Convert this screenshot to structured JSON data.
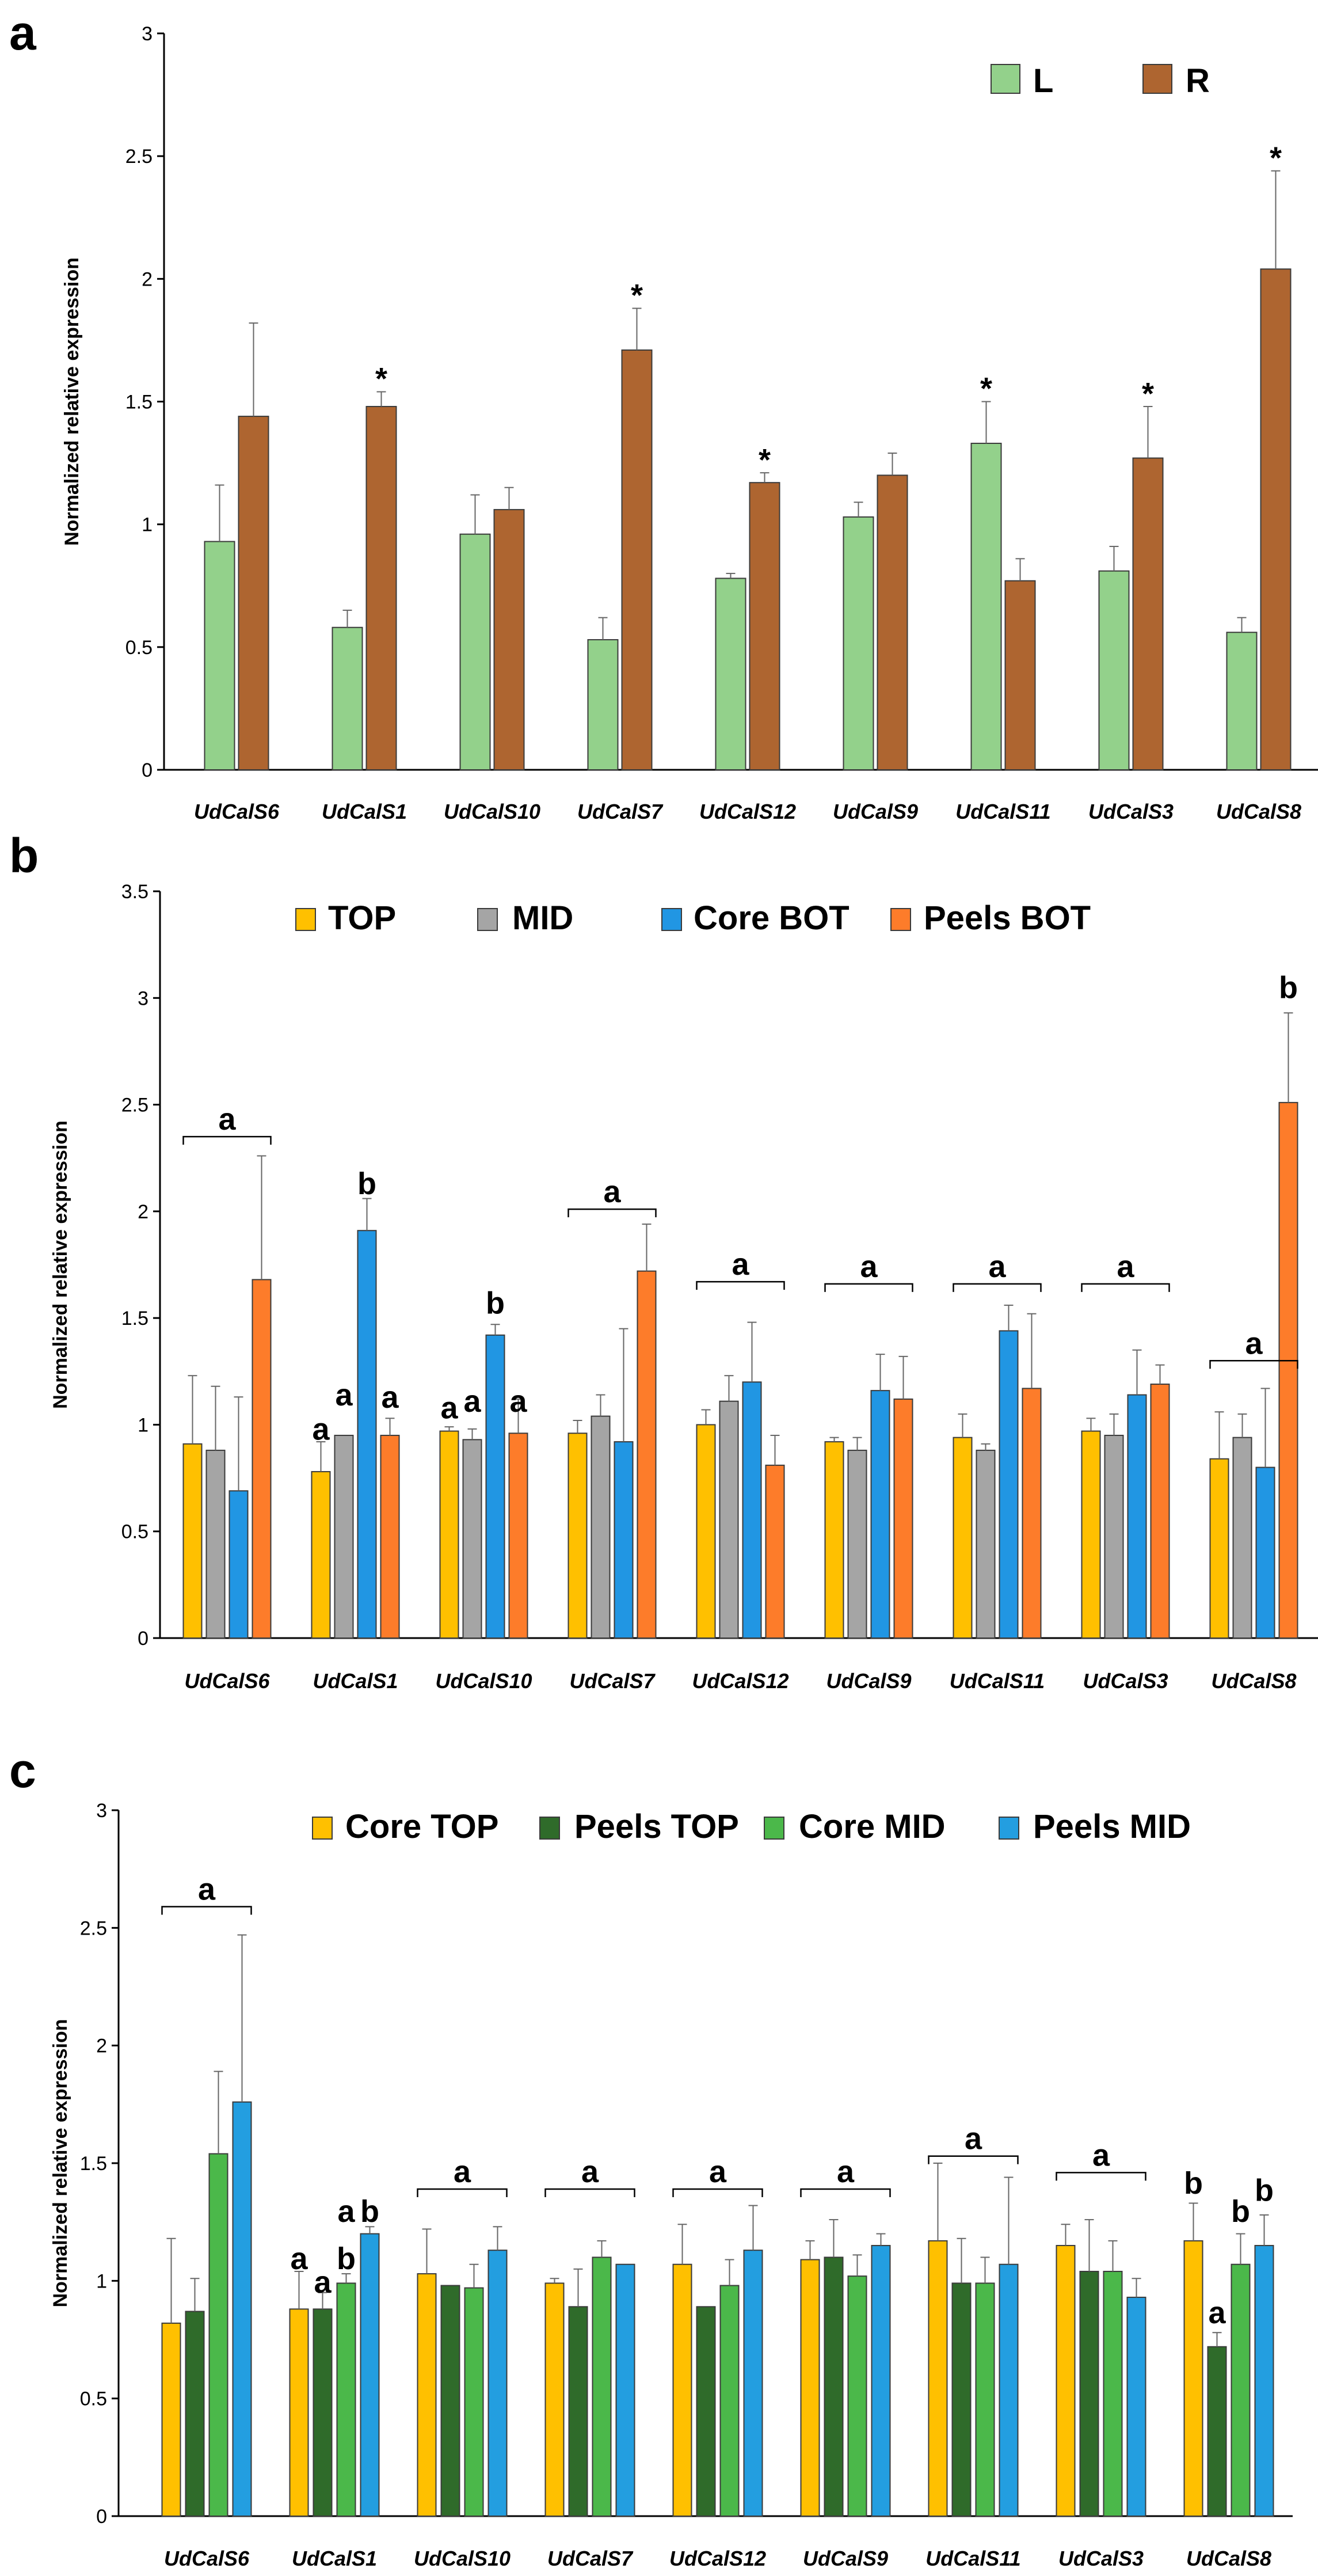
{
  "chart_data": [
    {
      "panel": "a",
      "type": "bar",
      "ylabel": "Normalized relative expression",
      "ylim": [
        0,
        3
      ],
      "yticks": [
        "0",
        "0.5",
        "1",
        "1.5",
        "2",
        "2.5",
        "3"
      ],
      "categories": [
        "UdCalS6",
        "UdCalS1",
        "UdCalS10",
        "UdCalS7",
        "UdCalS12",
        "UdCalS9",
        "UdCalS11",
        "UdCalS3",
        "UdCalS8"
      ],
      "legend_placement": "top-right",
      "series": [
        {
          "name": "L",
          "color": "#93d18b",
          "values": [
            0.93,
            0.58,
            0.96,
            0.53,
            0.78,
            1.03,
            1.33,
            0.81,
            0.56
          ],
          "errors": [
            0.23,
            0.07,
            0.16,
            0.09,
            0.02,
            0.06,
            0.17,
            0.1,
            0.06
          ]
        },
        {
          "name": "R",
          "color": "#ae6530",
          "values": [
            1.44,
            1.48,
            1.06,
            1.71,
            1.17,
            1.2,
            0.77,
            1.27,
            2.04
          ],
          "errors": [
            0.38,
            0.06,
            0.09,
            0.17,
            0.04,
            0.09,
            0.09,
            0.21,
            0.4
          ]
        }
      ],
      "annotations": [
        {
          "text": "*",
          "category": 1,
          "series": 1,
          "value": 1.55
        },
        {
          "text": "*",
          "category": 3,
          "series": 1,
          "value": 1.89
        },
        {
          "text": "*",
          "category": 4,
          "series": 1,
          "value": 1.22
        },
        {
          "text": "*",
          "category": 6,
          "series": 0,
          "value": 1.51
        },
        {
          "text": "*",
          "category": 7,
          "series": 1,
          "value": 1.49
        },
        {
          "text": "*",
          "category": 8,
          "series": 1,
          "value": 2.45
        }
      ],
      "brackets": []
    },
    {
      "panel": "b",
      "type": "bar",
      "ylabel": "Normalized relative expression",
      "ylim": [
        0,
        3.5
      ],
      "yticks": [
        "0",
        "0.5",
        "1",
        "1.5",
        "2",
        "2.5",
        "3",
        "3.5"
      ],
      "categories": [
        "UdCalS6",
        "UdCalS1",
        "UdCalS10",
        "UdCalS7",
        "UdCalS12",
        "UdCalS9",
        "UdCalS11",
        "UdCalS3",
        "UdCalS8"
      ],
      "legend_placement": "top",
      "series": [
        {
          "name": "TOP",
          "color": "#ffc000",
          "values": [
            0.91,
            0.78,
            0.97,
            0.96,
            1.0,
            0.92,
            0.94,
            0.97,
            0.84
          ],
          "errors": [
            0.32,
            0.14,
            0.02,
            0.06,
            0.07,
            0.02,
            0.11,
            0.06,
            0.22
          ]
        },
        {
          "name": "MID",
          "color": "#a5a5a5",
          "values": [
            0.88,
            0.95,
            0.93,
            1.04,
            1.11,
            0.88,
            0.88,
            0.95,
            0.94
          ],
          "errors": [
            0.3,
            0.0,
            0.05,
            0.1,
            0.12,
            0.06,
            0.03,
            0.1,
            0.11
          ]
        },
        {
          "name": "Core BOT",
          "color": "#2196e3",
          "values": [
            0.69,
            1.91,
            1.42,
            0.92,
            1.2,
            1.16,
            1.44,
            1.14,
            0.8
          ],
          "errors": [
            0.44,
            0.15,
            0.05,
            0.53,
            0.28,
            0.17,
            0.12,
            0.21,
            0.37
          ]
        },
        {
          "name": "Peels BOT",
          "color": "#fd7c2a",
          "values": [
            1.68,
            0.95,
            0.96,
            1.72,
            0.81,
            1.12,
            1.17,
            1.19,
            2.51
          ],
          "errors": [
            0.58,
            0.08,
            0.16,
            0.22,
            0.14,
            0.2,
            0.35,
            0.09,
            0.42
          ]
        }
      ],
      "annotations": [
        {
          "text": "a",
          "category": 1,
          "series": 0,
          "value": 0.93
        },
        {
          "text": "a",
          "category": 1,
          "series": 1,
          "value": 1.09
        },
        {
          "text": "b",
          "category": 1,
          "series": 2,
          "value": 2.08
        },
        {
          "text": "a",
          "category": 1,
          "series": 3,
          "value": 1.08
        },
        {
          "text": "a",
          "category": 2,
          "series": 0,
          "value": 1.03
        },
        {
          "text": "a",
          "category": 2,
          "series": 1,
          "value": 1.06
        },
        {
          "text": "b",
          "category": 2,
          "series": 2,
          "value": 1.52
        },
        {
          "text": "a",
          "category": 2,
          "series": 3,
          "value": 1.06
        },
        {
          "text": "b",
          "category": 8,
          "series": 3,
          "value": 3.0
        }
      ],
      "brackets": [
        {
          "text": "a",
          "category": 0,
          "value": 2.35
        },
        {
          "text": "a",
          "category": 3,
          "value": 2.01
        },
        {
          "text": "a",
          "category": 4,
          "value": 1.67
        },
        {
          "text": "a",
          "category": 5,
          "value": 1.66
        },
        {
          "text": "a",
          "category": 6,
          "value": 1.66
        },
        {
          "text": "a",
          "category": 7,
          "value": 1.66
        },
        {
          "text": "a",
          "category": 8,
          "value": 1.3
        }
      ]
    },
    {
      "panel": "c",
      "type": "bar",
      "ylabel": "Normalized relative expression",
      "ylim": [
        0,
        3
      ],
      "yticks": [
        "0",
        "0.5",
        "1",
        "1.5",
        "2",
        "2.5",
        "3"
      ],
      "categories": [
        "UdCalS6",
        "UdCalS1",
        "UdCalS10",
        "UdCalS7",
        "UdCalS12",
        "UdCalS9",
        "UdCalS11",
        "UdCalS3",
        "UdCalS8"
      ],
      "legend_placement": "top",
      "series": [
        {
          "name": "Core TOP",
          "color": "#ffc000",
          "values": [
            0.82,
            0.88,
            1.03,
            0.99,
            1.07,
            1.09,
            1.17,
            1.15,
            1.17
          ],
          "errors": [
            0.36,
            0.16,
            0.19,
            0.02,
            0.17,
            0.08,
            0.33,
            0.09,
            0.16
          ]
        },
        {
          "name": "Peels TOP",
          "color": "#2f6b2a",
          "values": [
            0.87,
            0.88,
            0.98,
            0.89,
            0.89,
            1.1,
            0.99,
            1.04,
            0.72
          ],
          "errors": [
            0.14,
            0.07,
            0.0,
            0.16,
            0.0,
            0.16,
            0.19,
            0.22,
            0.06
          ]
        },
        {
          "name": "Core MID",
          "color": "#4bb84a",
          "values": [
            1.54,
            0.99,
            0.97,
            1.1,
            0.98,
            1.02,
            0.99,
            1.04,
            1.07
          ],
          "errors": [
            0.35,
            0.04,
            0.1,
            0.07,
            0.11,
            0.09,
            0.11,
            0.13,
            0.13
          ]
        },
        {
          "name": "Peels MID",
          "color": "#239ee0",
          "values": [
            1.76,
            1.2,
            1.13,
            1.07,
            1.13,
            1.15,
            1.07,
            0.93,
            1.15
          ],
          "errors": [
            0.71,
            0.03,
            0.1,
            0.0,
            0.19,
            0.05,
            0.37,
            0.08,
            0.13
          ]
        }
      ],
      "annotations": [
        {
          "text": "a",
          "category": 1,
          "series": 0,
          "value": 1.05
        },
        {
          "text": "a",
          "category": 1,
          "series": 1,
          "value": 0.95
        },
        {
          "text": "b",
          "category": 1,
          "series": 2,
          "value": 1.05
        },
        {
          "text": "a",
          "category": 1,
          "series": 2,
          "value": 1.25
        },
        {
          "text": "b",
          "category": 1,
          "series": 3,
          "value": 1.25
        },
        {
          "text": "b",
          "category": 8,
          "series": 0,
          "value": 1.37
        },
        {
          "text": "a",
          "category": 8,
          "series": 1,
          "value": 0.82
        },
        {
          "text": "b",
          "category": 8,
          "series": 2,
          "value": 1.25
        },
        {
          "text": "b",
          "category": 8,
          "series": 3,
          "value": 1.34
        }
      ],
      "brackets": [
        {
          "text": "a",
          "category": 0,
          "value": 2.59
        },
        {
          "text": "a",
          "category": 2,
          "value": 1.39
        },
        {
          "text": "a",
          "category": 3,
          "value": 1.39
        },
        {
          "text": "a",
          "category": 4,
          "value": 1.39
        },
        {
          "text": "a",
          "category": 5,
          "value": 1.39
        },
        {
          "text": "a",
          "category": 6,
          "value": 1.53
        },
        {
          "text": "a",
          "category": 7,
          "value": 1.46
        }
      ]
    }
  ]
}
